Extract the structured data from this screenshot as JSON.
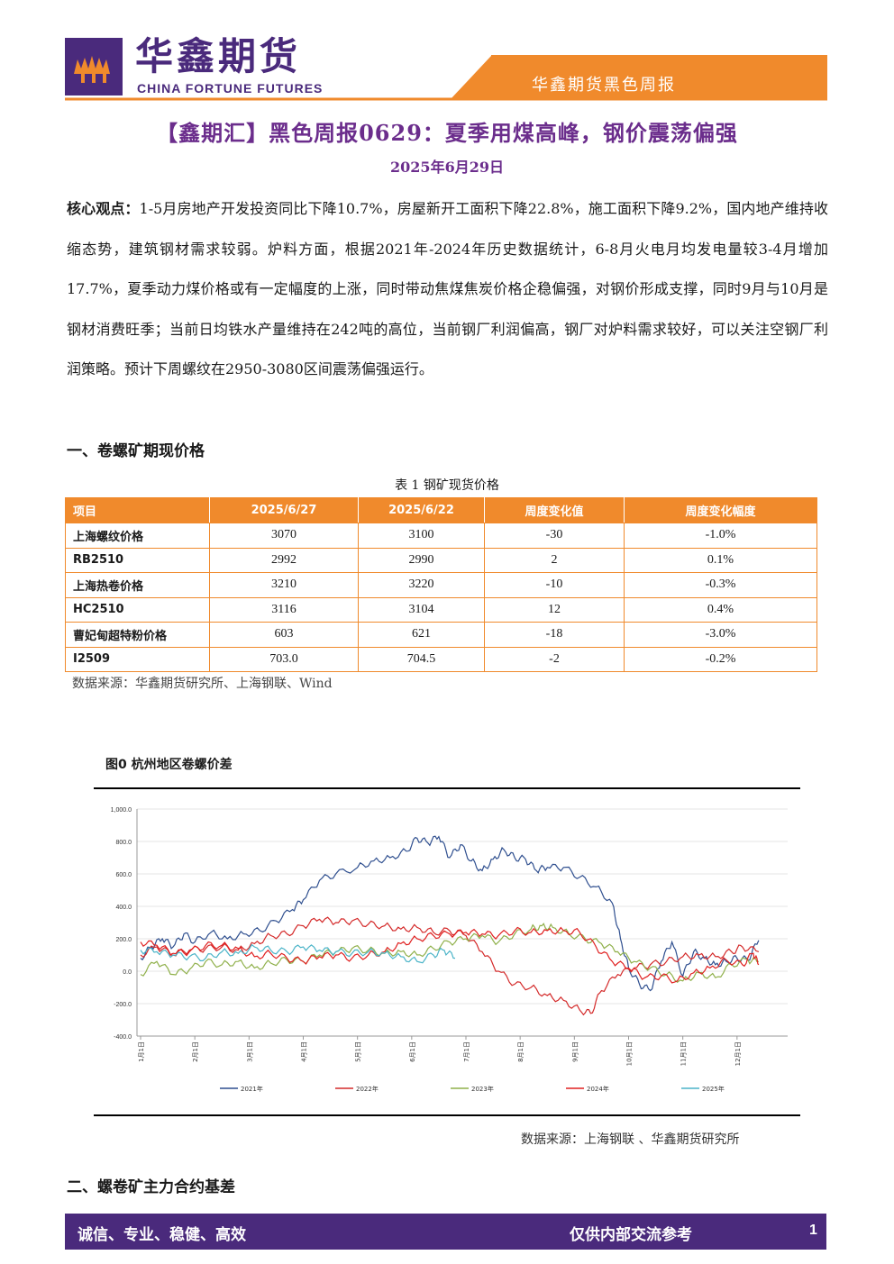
{
  "header": {
    "logo_cn": "华鑫期货",
    "logo_en": "CHINA FORTUNE FUTURES",
    "report_label": "华鑫期货黑色周报",
    "brand_color": "#4a2a7c",
    "accent_color": "#f08a2c"
  },
  "title": "【鑫期汇】黑色周报0629：夏季用煤高峰，钢价震荡偏强",
  "date": "2025年6月29日",
  "summary": {
    "label": "核心观点：",
    "text": "1-5月房地产开发投资同比下降10.7%，房屋新开工面积下降22.8%，施工面积下降9.2%，国内地产维持收缩态势，建筑钢材需求较弱。炉料方面，根据2021年-2024年历史数据统计，6-8月火电月均发电量较3-4月增加17.7%，夏季动力煤价格或有一定幅度的上涨，同时带动焦煤焦炭价格企稳偏强，对钢价形成支撑，同时9月与10月是钢材消费旺季；当前日均铁水产量维持在242吨的高位，当前钢厂利润偏高，钢厂对炉料需求较好，可以关注空钢厂利润策略。预计下周螺纹在2950-3080区间震荡偏强运行。"
  },
  "section1": "一、卷螺矿期现价格",
  "table": {
    "caption": "表 1 钢矿现货价格",
    "headers": [
      "项目",
      "2025/6/27",
      "2025/6/22",
      "周度变化值",
      "周度变化幅度"
    ],
    "rows": [
      [
        "上海螺纹价格",
        "3070",
        "3100",
        "-30",
        "-1.0%"
      ],
      [
        "RB2510",
        "2992",
        "2990",
        "2",
        "0.1%"
      ],
      [
        "上海热卷价格",
        "3210",
        "3220",
        "-10",
        "-0.3%"
      ],
      [
        "HC2510",
        "3116",
        "3104",
        "12",
        "0.4%"
      ],
      [
        "曹妃甸超特粉价格",
        "603",
        "621",
        "-18",
        "-3.0%"
      ],
      [
        "I2509",
        "703.0",
        "704.5",
        "-2",
        "-0.2%"
      ]
    ],
    "source": "数据来源：华鑫期货研究所、上海钢联、Wind"
  },
  "figure": {
    "title": "图0  杭州地区卷螺价差",
    "source": "数据来源：上海钢联 、华鑫期货研究所"
  },
  "chart_data": {
    "type": "line",
    "title": "",
    "xlabel": "",
    "ylabel": "",
    "ylim": [
      -400,
      1000
    ],
    "yticks": [
      "1,000.0",
      "800.0",
      "600.0",
      "400.0",
      "200.0",
      "0.0",
      "-200.0",
      "-400.0"
    ],
    "x_categories": [
      "1月1日",
      "2月1日",
      "3月1日",
      "4月1日",
      "5月1日",
      "6月1日",
      "7月1日",
      "8月1日",
      "9月1日",
      "10月1日",
      "11月1日",
      "12月1日"
    ],
    "legend_position": "bottom",
    "series": [
      {
        "name": "2021年",
        "color": "#2f4f8f",
        "points": [
          [
            0,
            80
          ],
          [
            0.2,
            150
          ],
          [
            0.4,
            200
          ],
          [
            0.6,
            150
          ],
          [
            0.8,
            230
          ],
          [
            1,
            180
          ],
          [
            1.3,
            240
          ],
          [
            1.6,
            200
          ],
          [
            1.9,
            230
          ],
          [
            2.2,
            250
          ],
          [
            2.5,
            310
          ],
          [
            2.8,
            380
          ],
          [
            3,
            440
          ],
          [
            3.3,
            560
          ],
          [
            3.6,
            600
          ],
          [
            4,
            640
          ],
          [
            4.3,
            680
          ],
          [
            4.6,
            700
          ],
          [
            4.9,
            740
          ],
          [
            5.1,
            820
          ],
          [
            5.3,
            790
          ],
          [
            5.5,
            830
          ],
          [
            5.7,
            700
          ],
          [
            5.9,
            780
          ],
          [
            6.1,
            680
          ],
          [
            6.3,
            620
          ],
          [
            6.5,
            690
          ],
          [
            6.7,
            750
          ],
          [
            6.9,
            700
          ],
          [
            7.1,
            690
          ],
          [
            7.3,
            620
          ],
          [
            7.5,
            640
          ],
          [
            7.8,
            640
          ],
          [
            8.1,
            580
          ],
          [
            8.4,
            520
          ],
          [
            8.7,
            420
          ],
          [
            8.85,
            200
          ],
          [
            9,
            20
          ],
          [
            9.2,
            -80
          ],
          [
            9.4,
            -120
          ],
          [
            9.6,
            60
          ],
          [
            9.8,
            180
          ],
          [
            10,
            -30
          ],
          [
            10.2,
            120
          ],
          [
            10.4,
            80
          ],
          [
            10.6,
            40
          ],
          [
            10.8,
            60
          ],
          [
            11,
            80
          ],
          [
            11.2,
            70
          ],
          [
            11.4,
            190
          ]
        ]
      },
      {
        "name": "2022年",
        "color": "#d42a2a",
        "points": [
          [
            0,
            100
          ],
          [
            0.3,
            150
          ],
          [
            0.6,
            100
          ],
          [
            0.9,
            130
          ],
          [
            1.2,
            140
          ],
          [
            1.5,
            150
          ],
          [
            1.8,
            130
          ],
          [
            2.1,
            170
          ],
          [
            2.4,
            220
          ],
          [
            2.7,
            230
          ],
          [
            3,
            280
          ],
          [
            3.3,
            320
          ],
          [
            3.6,
            300
          ],
          [
            3.9,
            310
          ],
          [
            4.2,
            290
          ],
          [
            4.5,
            280
          ],
          [
            4.8,
            260
          ],
          [
            5.1,
            270
          ],
          [
            5.4,
            240
          ],
          [
            5.7,
            250
          ],
          [
            6,
            220
          ],
          [
            6.3,
            120
          ],
          [
            6.6,
            0
          ],
          [
            6.9,
            -80
          ],
          [
            7.2,
            -100
          ],
          [
            7.5,
            -150
          ],
          [
            7.8,
            -180
          ],
          [
            8.1,
            -240
          ],
          [
            8.3,
            -260
          ],
          [
            8.5,
            -120
          ],
          [
            8.8,
            -20
          ],
          [
            9.1,
            20
          ],
          [
            9.4,
            40
          ],
          [
            9.7,
            60
          ],
          [
            10,
            90
          ],
          [
            10.3,
            100
          ],
          [
            10.6,
            90
          ],
          [
            10.9,
            120
          ],
          [
            11.1,
            150
          ],
          [
            11.4,
            120
          ]
        ]
      },
      {
        "name": "2023年",
        "color": "#8fb04a",
        "points": [
          [
            0,
            -20
          ],
          [
            0.3,
            60
          ],
          [
            0.6,
            -20
          ],
          [
            0.9,
            10
          ],
          [
            1.2,
            60
          ],
          [
            1.5,
            40
          ],
          [
            1.8,
            60
          ],
          [
            2.1,
            20
          ],
          [
            2.4,
            50
          ],
          [
            2.7,
            70
          ],
          [
            3,
            60
          ],
          [
            3.3,
            100
          ],
          [
            3.6,
            120
          ],
          [
            3.9,
            140
          ],
          [
            4.2,
            130
          ],
          [
            4.5,
            110
          ],
          [
            4.8,
            120
          ],
          [
            5.1,
            100
          ],
          [
            5.4,
            140
          ],
          [
            5.7,
            180
          ],
          [
            6,
            200
          ],
          [
            6.3,
            220
          ],
          [
            6.6,
            180
          ],
          [
            6.9,
            230
          ],
          [
            7.2,
            260
          ],
          [
            7.4,
            280
          ],
          [
            7.6,
            270
          ],
          [
            7.9,
            230
          ],
          [
            8.2,
            200
          ],
          [
            8.5,
            170
          ],
          [
            8.8,
            120
          ],
          [
            9.1,
            60
          ],
          [
            9.4,
            20
          ],
          [
            9.7,
            -20
          ],
          [
            10,
            -60
          ],
          [
            10.3,
            -10
          ],
          [
            10.6,
            -40
          ],
          [
            10.9,
            40
          ],
          [
            11.2,
            70
          ],
          [
            11.4,
            60
          ]
        ]
      },
      {
        "name": "2024年",
        "color": "#e02020",
        "points": [
          [
            0,
            180
          ],
          [
            0.3,
            160
          ],
          [
            0.6,
            110
          ],
          [
            0.9,
            120
          ],
          [
            1.2,
            160
          ],
          [
            1.5,
            160
          ],
          [
            1.8,
            140
          ],
          [
            2.1,
            90
          ],
          [
            2.4,
            110
          ],
          [
            2.7,
            80
          ],
          [
            3,
            60
          ],
          [
            3.3,
            90
          ],
          [
            3.6,
            100
          ],
          [
            3.9,
            80
          ],
          [
            4.2,
            100
          ],
          [
            4.5,
            120
          ],
          [
            4.8,
            170
          ],
          [
            5.1,
            200
          ],
          [
            5.4,
            220
          ],
          [
            5.7,
            230
          ],
          [
            6,
            240
          ],
          [
            6.3,
            230
          ],
          [
            6.6,
            220
          ],
          [
            6.9,
            250
          ],
          [
            7.2,
            240
          ],
          [
            7.5,
            250
          ],
          [
            7.8,
            250
          ],
          [
            8.1,
            240
          ],
          [
            8.4,
            150
          ],
          [
            8.7,
            60
          ],
          [
            9,
            20
          ],
          [
            9.3,
            -40
          ],
          [
            9.6,
            -30
          ],
          [
            9.9,
            -60
          ],
          [
            10.2,
            -10
          ],
          [
            10.5,
            20
          ],
          [
            10.8,
            70
          ],
          [
            11.1,
            40
          ],
          [
            11.3,
            110
          ],
          [
            11.4,
            40
          ]
        ]
      },
      {
        "name": "2025年",
        "color": "#4bb4c8",
        "points": [
          [
            0,
            130
          ],
          [
            0.3,
            120
          ],
          [
            0.6,
            100
          ],
          [
            0.9,
            90
          ],
          [
            1.2,
            80
          ],
          [
            1.5,
            120
          ],
          [
            1.8,
            110
          ],
          [
            2.1,
            150
          ],
          [
            2.4,
            130
          ],
          [
            2.7,
            120
          ],
          [
            3,
            150
          ],
          [
            3.3,
            130
          ],
          [
            3.6,
            120
          ],
          [
            3.9,
            110
          ],
          [
            4.2,
            120
          ],
          [
            4.5,
            110
          ],
          [
            4.8,
            90
          ],
          [
            5.1,
            60
          ],
          [
            5.4,
            100
          ],
          [
            5.6,
            130
          ],
          [
            5.8,
            80
          ]
        ]
      }
    ]
  }
}
